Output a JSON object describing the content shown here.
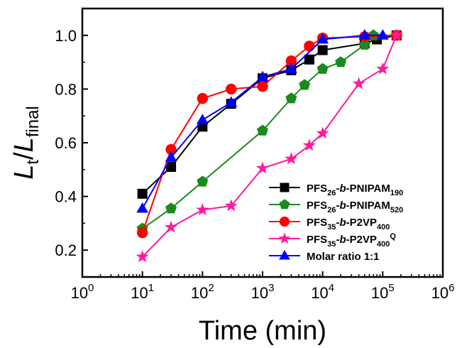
{
  "chart_data": {
    "type": "line",
    "xlabel": "Time (min)",
    "ylabel": {
      "main": "L",
      "sub1": "t",
      "mid": "/",
      "main2": "L",
      "sub2": "final"
    },
    "x_scale": "log",
    "xlim": [
      1,
      1000000
    ],
    "ylim": [
      0.1,
      1.1
    ],
    "x_ticks": [
      {
        "value": 1,
        "base": "10",
        "exp": "0"
      },
      {
        "value": 10,
        "base": "10",
        "exp": "1"
      },
      {
        "value": 100,
        "base": "10",
        "exp": "2"
      },
      {
        "value": 1000,
        "base": "10",
        "exp": "3"
      },
      {
        "value": 10000,
        "base": "10",
        "exp": "4"
      },
      {
        "value": 100000,
        "base": "10",
        "exp": "5"
      },
      {
        "value": 1000000,
        "base": "10",
        "exp": "6"
      }
    ],
    "y_ticks": [
      {
        "value": 0.2,
        "label": "0.2"
      },
      {
        "value": 0.4,
        "label": "0.4"
      },
      {
        "value": 0.6,
        "label": "0.6"
      },
      {
        "value": 0.8,
        "label": "0.8"
      },
      {
        "value": 1.0,
        "label": "1.0"
      }
    ],
    "grid": false,
    "legend_position": "lower-right",
    "series": [
      {
        "key": "pnipam190",
        "legend": {
          "a": "PFS",
          "a_sub": "26",
          "b": "-",
          "c": "b",
          "d": "-PNIPAM",
          "d_sub": "190",
          "sup": ""
        },
        "color": "#000000",
        "marker": "square",
        "x": [
          10,
          30,
          100,
          300,
          1000,
          3000,
          6000,
          10000,
          50000,
          80000,
          170000
        ],
        "y": [
          0.41,
          0.51,
          0.66,
          0.745,
          0.84,
          0.87,
          0.91,
          0.945,
          0.97,
          0.985,
          1.0
        ]
      },
      {
        "key": "pnipam520",
        "legend": {
          "a": "PFS",
          "a_sub": "26",
          "b": "-",
          "c": "b",
          "d": "-PNIPAM",
          "d_sub": "520",
          "sup": ""
        },
        "color": "#1a8a1a",
        "marker": "pentagon",
        "x": [
          10,
          30,
          100,
          1000,
          3000,
          5000,
          10000,
          20000,
          50000,
          70000,
          170000
        ],
        "y": [
          0.28,
          0.355,
          0.455,
          0.645,
          0.765,
          0.815,
          0.875,
          0.9,
          0.965,
          1.0,
          1.0
        ]
      },
      {
        "key": "p2vp400",
        "legend": {
          "a": "PFS",
          "a_sub": "35",
          "b": "-",
          "c": "b",
          "d": "-P2VP",
          "d_sub": "400",
          "sup": ""
        },
        "color": "#ff0000",
        "marker": "circle",
        "x": [
          10,
          30,
          100,
          300,
          1000,
          3000,
          6000,
          10000,
          50000,
          170000
        ],
        "y": [
          0.265,
          0.575,
          0.765,
          0.8,
          0.81,
          0.905,
          0.96,
          0.99,
          0.995,
          1.0
        ]
      },
      {
        "key": "p2vp400q",
        "legend": {
          "a": "PFS",
          "a_sub": "35",
          "b": "-",
          "c": "b",
          "d": "-P2VP",
          "d_sub": "400",
          "sup": "Q"
        },
        "color": "#ff1a9c",
        "marker": "star",
        "x": [
          10,
          30,
          100,
          300,
          1000,
          3000,
          6000,
          10000,
          40000,
          100000,
          170000
        ],
        "y": [
          0.175,
          0.285,
          0.35,
          0.365,
          0.505,
          0.54,
          0.59,
          0.635,
          0.82,
          0.875,
          1.0
        ]
      },
      {
        "key": "molar",
        "legend": {
          "a": "Molar ratio 1:1",
          "a_sub": "",
          "b": "",
          "c": "",
          "d": "",
          "d_sub": "",
          "sup": ""
        },
        "color": "#0000ff",
        "marker": "triangle",
        "x": [
          10,
          30,
          100,
          300,
          1000,
          3000,
          10000,
          50000,
          100000
        ],
        "y": [
          0.355,
          0.545,
          0.685,
          0.75,
          0.845,
          0.875,
          0.985,
          1.0,
          1.0
        ]
      }
    ]
  }
}
